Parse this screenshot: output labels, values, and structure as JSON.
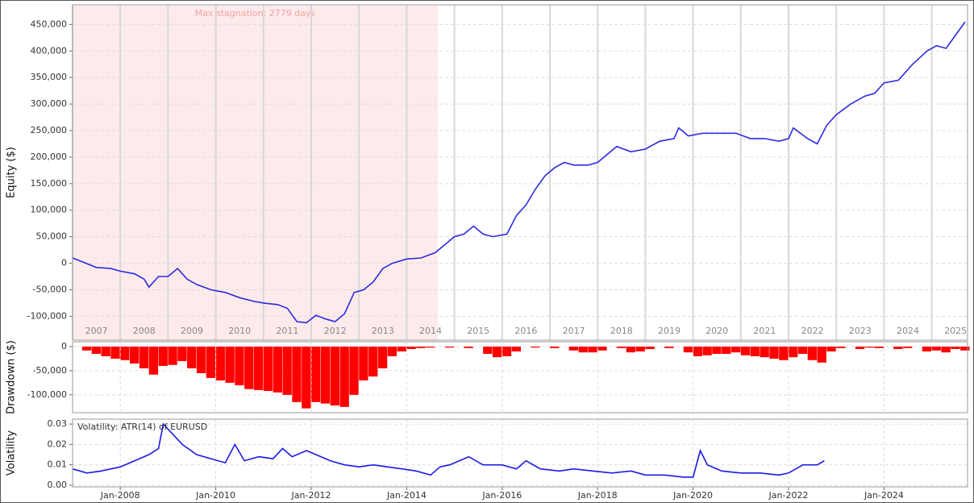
{
  "chart_data": [
    {
      "type": "line",
      "y_label": "Equity ($)",
      "annotation": "Max stagnation: 2779 days",
      "stagnation": [
        2007,
        2014.65
      ],
      "stagnation_color": "#fdeaea",
      "color": "#2b2be0",
      "xlim": [
        2007,
        2025.75
      ],
      "ylim": [
        -145000,
        487000
      ],
      "grid": true,
      "xticks": [
        2007,
        2008,
        2009,
        2010,
        2011,
        2012,
        2013,
        2014,
        2015,
        2016,
        2017,
        2018,
        2019,
        2020,
        2021,
        2022,
        2023,
        2024,
        2025
      ],
      "yticks": [
        {
          "value": -100000,
          "label": "-100,000"
        },
        {
          "value": -50000,
          "label": "-50,000"
        },
        0,
        {
          "value": 50000,
          "label": "50,000"
        },
        {
          "value": 100000,
          "label": "100,000"
        },
        {
          "value": 150000,
          "label": "150,000"
        },
        {
          "value": 200000,
          "label": "200,000"
        },
        {
          "value": 250000,
          "label": "250,000"
        },
        {
          "value": 300000,
          "label": "300,000"
        },
        {
          "value": 350000,
          "label": "350,000"
        },
        {
          "value": 400000,
          "label": "400,000"
        },
        {
          "value": 450000,
          "label": "450,000"
        }
      ],
      "x": [
        2007.0,
        2007.2,
        2007.5,
        2007.8,
        2008.0,
        2008.3,
        2008.5,
        2008.6,
        2008.8,
        2009.0,
        2009.2,
        2009.4,
        2009.6,
        2009.9,
        2010.2,
        2010.5,
        2010.8,
        2011.0,
        2011.3,
        2011.5,
        2011.7,
        2011.9,
        2012.1,
        2012.3,
        2012.5,
        2012.7,
        2012.9,
        2013.1,
        2013.3,
        2013.5,
        2013.7,
        2014.0,
        2014.3,
        2014.6,
        2014.8,
        2015.0,
        2015.2,
        2015.4,
        2015.6,
        2015.8,
        2016.1,
        2016.3,
        2016.5,
        2016.7,
        2016.9,
        2017.1,
        2017.3,
        2017.5,
        2017.8,
        2018.0,
        2018.2,
        2018.4,
        2018.7,
        2019.0,
        2019.3,
        2019.6,
        2019.7,
        2019.9,
        2020.2,
        2020.6,
        2020.9,
        2021.2,
        2021.5,
        2021.8,
        2022.0,
        2022.1,
        2022.4,
        2022.6,
        2022.8,
        2023.0,
        2023.3,
        2023.6,
        2023.8,
        2024.0,
        2024.3,
        2024.6,
        2024.9,
        2025.1,
        2025.3,
        2025.5,
        2025.7
      ],
      "values": [
        10000,
        3000,
        -8000,
        -10000,
        -15000,
        -20000,
        -30000,
        -45000,
        -25000,
        -25000,
        -10000,
        -30000,
        -40000,
        -50000,
        -55000,
        -65000,
        -72000,
        -75000,
        -78000,
        -85000,
        -110000,
        -112000,
        -98000,
        -105000,
        -110000,
        -95000,
        -55000,
        -50000,
        -35000,
        -10000,
        0,
        8000,
        10000,
        20000,
        35000,
        50000,
        55000,
        70000,
        55000,
        50000,
        55000,
        90000,
        110000,
        140000,
        165000,
        180000,
        190000,
        185000,
        185000,
        190000,
        205000,
        220000,
        210000,
        215000,
        230000,
        235000,
        255000,
        240000,
        245000,
        245000,
        245000,
        235000,
        235000,
        230000,
        235000,
        255000,
        235000,
        225000,
        260000,
        280000,
        300000,
        315000,
        320000,
        340000,
        345000,
        375000,
        400000,
        410000,
        405000,
        430000,
        455000
      ]
    },
    {
      "type": "bar",
      "y_label": "Drawdown ($)",
      "color": "#ff0000",
      "xlim": [
        2007,
        2025.75
      ],
      "ylim": [
        -137000,
        10000
      ],
      "grid": true,
      "yticks": [
        {
          "value": -100000,
          "label": "-100,000"
        },
        {
          "value": -50000,
          "label": "-50,000"
        },
        0
      ],
      "x": [
        2007.0,
        2007.2,
        2007.4,
        2007.6,
        2007.8,
        2008.0,
        2008.2,
        2008.4,
        2008.6,
        2008.8,
        2009.0,
        2009.2,
        2009.4,
        2009.6,
        2009.8,
        2010.0,
        2010.2,
        2010.4,
        2010.6,
        2010.8,
        2011.0,
        2011.2,
        2011.4,
        2011.6,
        2011.8,
        2012.0,
        2012.2,
        2012.4,
        2012.6,
        2012.8,
        2013.0,
        2013.2,
        2013.4,
        2013.6,
        2013.8,
        2014.0,
        2014.2,
        2014.4,
        2014.6,
        2014.8,
        2015.0,
        2015.2,
        2015.4,
        2015.6,
        2015.8,
        2016.0,
        2016.2,
        2016.4,
        2016.6,
        2016.8,
        2017.0,
        2017.2,
        2017.4,
        2017.6,
        2017.8,
        2018.0,
        2018.2,
        2018.4,
        2018.6,
        2018.8,
        2019.0,
        2019.2,
        2019.4,
        2019.6,
        2019.8,
        2020.0,
        2020.2,
        2020.4,
        2020.6,
        2020.8,
        2021.0,
        2021.2,
        2021.4,
        2021.6,
        2021.8,
        2022.0,
        2022.2,
        2022.4,
        2022.6,
        2022.8,
        2023.0,
        2023.2,
        2023.4,
        2023.6,
        2023.8,
        2024.0,
        2024.2,
        2024.4,
        2024.6,
        2024.8,
        2025.0,
        2025.2,
        2025.4,
        2025.6
      ],
      "values": [
        0,
        -8000,
        -15000,
        -20000,
        -25000,
        -28000,
        -35000,
        -45000,
        -58000,
        -40000,
        -38000,
        -30000,
        -45000,
        -55000,
        -65000,
        -70000,
        -75000,
        -80000,
        -88000,
        -90000,
        -92000,
        -95000,
        -100000,
        -115000,
        -128000,
        -115000,
        -118000,
        -122000,
        -125000,
        -100000,
        -70000,
        -62000,
        -45000,
        -20000,
        -10000,
        -5000,
        -3000,
        -2000,
        0,
        -2000,
        0,
        -3000,
        0,
        -15000,
        -22000,
        -20000,
        -10000,
        0,
        -2000,
        0,
        -3000,
        0,
        -8000,
        -12000,
        -12000,
        -8000,
        0,
        -3000,
        -12000,
        -10000,
        -5000,
        0,
        -3000,
        0,
        -12000,
        -20000,
        -18000,
        -15000,
        -15000,
        -12000,
        -18000,
        -20000,
        -22000,
        -25000,
        -28000,
        -22000,
        -15000,
        -28000,
        -33000,
        -10000,
        -3000,
        0,
        -5000,
        -2000,
        -3000,
        0,
        -5000,
        -3000,
        0,
        -10000,
        -8000,
        -12000,
        -5000,
        -8000
      ]
    },
    {
      "type": "line",
      "y_label": "Volatility",
      "xlim": [
        2007,
        2025.75
      ],
      "ylim": [
        -0.0008,
        0.0324
      ],
      "grid": true,
      "xticks": [
        {
          "value": 2008,
          "label": "Jan-2008"
        },
        {
          "value": 2010,
          "label": "Jan-2010"
        },
        {
          "value": 2012,
          "label": "Jan-2012"
        },
        {
          "value": 2014,
          "label": "Jan-2014"
        },
        {
          "value": 2016,
          "label": "Jan-2016"
        },
        {
          "value": 2018,
          "label": "Jan-2018"
        },
        {
          "value": 2020,
          "label": "Jan-2020"
        },
        {
          "value": 2022,
          "label": "Jan-2022"
        },
        {
          "value": 2024,
          "label": "Jan-2024"
        }
      ],
      "yticks": [
        {
          "value": 0,
          "label": "0.00"
        },
        0.01,
        0.02,
        0.03
      ],
      "x": [
        2007.0,
        2007.3,
        2007.6,
        2008.0,
        2008.3,
        2008.6,
        2008.8,
        2008.9,
        2009.1,
        2009.3,
        2009.6,
        2009.9,
        2010.2,
        2010.4,
        2010.6,
        2010.9,
        2011.2,
        2011.4,
        2011.6,
        2011.9,
        2012.1,
        2012.4,
        2012.7,
        2013.0,
        2013.3,
        2013.6,
        2013.9,
        2014.2,
        2014.5,
        2014.7,
        2014.9,
        2015.3,
        2015.6,
        2016.0,
        2016.3,
        2016.5,
        2016.8,
        2017.2,
        2017.5,
        2017.9,
        2018.3,
        2018.7,
        2019.0,
        2019.4,
        2019.8,
        2020.0,
        2020.15,
        2020.3,
        2020.6,
        2021.0,
        2021.4,
        2021.8,
        2022.0,
        2022.3,
        2022.6,
        2022.75
      ],
      "series": [
        {
          "name": "Volatility: ATR(14) of EURUSD",
          "color": "#1a1ae6",
          "values": [
            0.008,
            0.006,
            0.007,
            0.009,
            0.012,
            0.015,
            0.018,
            0.03,
            0.025,
            0.02,
            0.015,
            0.013,
            0.011,
            0.02,
            0.012,
            0.014,
            0.013,
            0.018,
            0.014,
            0.017,
            0.015,
            0.012,
            0.01,
            0.009,
            0.01,
            0.009,
            0.008,
            0.007,
            0.005,
            0.009,
            0.01,
            0.014,
            0.01,
            0.01,
            0.008,
            0.012,
            0.008,
            0.007,
            0.008,
            0.007,
            0.006,
            0.007,
            0.005,
            0.005,
            0.004,
            0.004,
            0.017,
            0.01,
            0.007,
            0.006,
            0.006,
            0.005,
            0.006,
            0.01,
            0.01,
            0.012
          ]
        }
      ]
    }
  ]
}
